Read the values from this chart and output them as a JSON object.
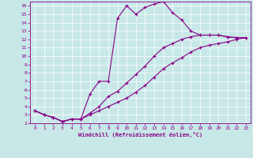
{
  "xlabel": "Windchill (Refroidissement éolien,°C)",
  "bg_color": "#c8e8e8",
  "line_color": "#880088",
  "grid_color": "#aadddd",
  "xlim": [
    -0.5,
    23.5
  ],
  "ylim": [
    2,
    16.5
  ],
  "x_ticks": [
    0,
    1,
    2,
    3,
    4,
    5,
    6,
    7,
    8,
    9,
    10,
    11,
    12,
    13,
    14,
    15,
    16,
    17,
    18,
    19,
    20,
    21,
    22,
    23
  ],
  "y_ticks": [
    2,
    3,
    4,
    5,
    6,
    7,
    8,
    9,
    10,
    11,
    12,
    13,
    14,
    15,
    16
  ],
  "curve1_x": [
    0,
    1,
    2,
    3,
    4,
    5,
    6,
    7,
    8,
    9,
    10,
    11,
    12,
    13,
    14,
    15,
    16,
    17,
    18,
    19,
    20,
    21,
    22,
    23
  ],
  "curve1_y": [
    3.5,
    3.0,
    2.7,
    2.2,
    2.5,
    2.5,
    5.5,
    7.0,
    7.0,
    14.5,
    16.0,
    15.0,
    15.8,
    16.2,
    16.5,
    15.2,
    14.3,
    13.0,
    12.5,
    12.5,
    12.5,
    12.3,
    12.2,
    12.2
  ],
  "curve2_x": [
    0,
    1,
    2,
    3,
    4,
    5,
    6,
    7,
    8,
    9,
    10,
    11,
    12,
    13,
    14,
    15,
    16,
    17,
    18,
    19,
    20,
    21,
    22,
    23
  ],
  "curve2_y": [
    3.5,
    3.0,
    2.7,
    2.2,
    2.5,
    2.5,
    3.2,
    4.0,
    5.2,
    5.8,
    6.8,
    7.8,
    8.8,
    10.0,
    11.0,
    11.5,
    12.0,
    12.3,
    12.5,
    12.5,
    12.5,
    12.3,
    12.2,
    12.2
  ],
  "curve3_x": [
    0,
    1,
    2,
    3,
    4,
    5,
    6,
    7,
    8,
    9,
    10,
    11,
    12,
    13,
    14,
    15,
    16,
    17,
    18,
    19,
    20,
    21,
    22,
    23
  ],
  "curve3_y": [
    3.5,
    3.0,
    2.7,
    2.2,
    2.5,
    2.5,
    3.0,
    3.5,
    4.0,
    4.5,
    5.0,
    5.7,
    6.5,
    7.5,
    8.5,
    9.2,
    9.8,
    10.5,
    11.0,
    11.3,
    11.5,
    11.7,
    12.0,
    12.2
  ]
}
